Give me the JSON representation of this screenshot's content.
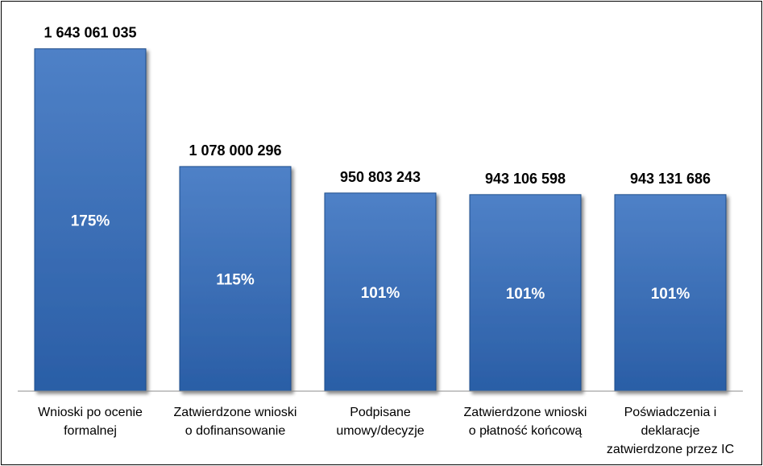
{
  "chart_data": {
    "type": "bar",
    "categories": [
      [
        "Wnioski po ocenie",
        "formalnej"
      ],
      [
        "Zatwierdzone wnioski",
        "o dofinansowanie"
      ],
      [
        "Podpisane",
        "umowy/decyzje"
      ],
      [
        "Zatwierdzone wnioski",
        "o płatność końcową"
      ],
      [
        "Poświadczenia i",
        "deklaracje",
        "zatwierdzone przez IC"
      ]
    ],
    "values": [
      1643061035,
      1078000296,
      950803243,
      943106598,
      943131686
    ],
    "value_labels": [
      "1 643 061 035",
      "1 078 000 296",
      "950 803 243",
      "943 106 598",
      "943 131 686"
    ],
    "percent_labels": [
      "175%",
      "115%",
      "101%",
      "101%",
      "101%"
    ],
    "title": "",
    "xlabel": "",
    "ylabel": "",
    "ylim": [
      0,
      1800000000
    ],
    "grid": false,
    "legend": "none",
    "colors": {
      "bar_top": "#4f81c7",
      "bar_bottom": "#2a5ea6",
      "bar_edge": "#1f4e8c",
      "axis": "#8c8c8c"
    }
  }
}
